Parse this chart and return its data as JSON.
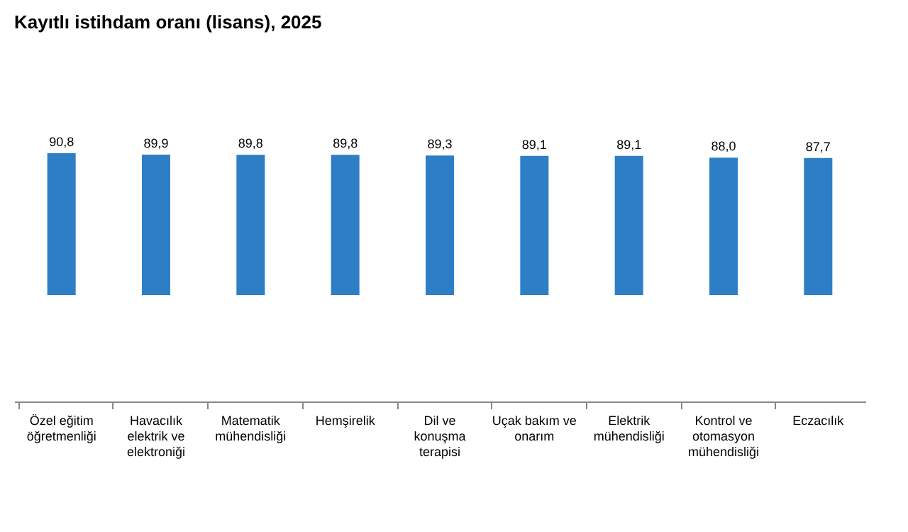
{
  "chart_data": {
    "type": "bar",
    "title": "Kayıtlı istihdam oranı (lisans), 2025",
    "categories": [
      "Özel eğitim öğretmenliği",
      "Havacılık elektrik ve elektroniği",
      "Matematik mühendisliği",
      "Hemşirelik",
      "Dil ve konuşma terapisi",
      "Uçak bakım ve onarım",
      "Elektrik mühendisliği",
      "Kontrol ve otomasyon mühendisliği",
      "Eczacılık"
    ],
    "values": [
      90.8,
      89.9,
      89.8,
      89.8,
      89.3,
      89.1,
      89.1,
      88.0,
      87.7
    ],
    "value_labels": [
      "90,8",
      "89,9",
      "89,8",
      "89,8",
      "89,3",
      "89,1",
      "89,1",
      "88,0",
      "87,7"
    ],
    "color": "#2e7ec6",
    "tick_labels": "x",
    "grid": false
  }
}
